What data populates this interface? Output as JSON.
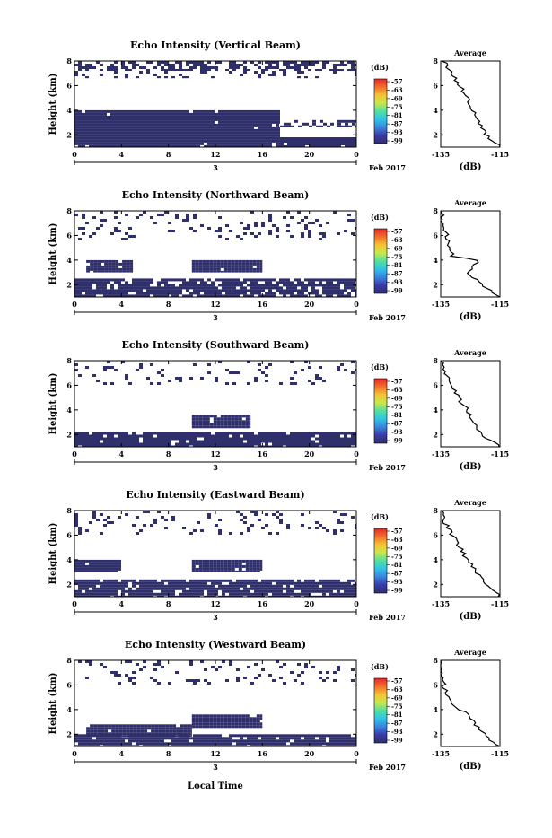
{
  "figure": {
    "xlabel_bottom": "Local Time",
    "date_label": "Feb 2017",
    "day_label": "3",
    "average_title": "Average",
    "average_xlabel": "(dB)",
    "ylabel": "Height (km)",
    "cb_unit": "(dB)",
    "cb_ticks": [
      "-57",
      "-63",
      "-69",
      "-75",
      "-81",
      "-87",
      "-93",
      "-99"
    ],
    "main_xticks": [
      "0",
      "4",
      "8",
      "12",
      "16",
      "20",
      "0"
    ],
    "main_yticks": [
      "8",
      "6",
      "4",
      "2"
    ],
    "avg_yticks": [
      "8",
      "6",
      "4",
      "2"
    ],
    "avg_xticks": [
      "-135",
      "-115"
    ]
  },
  "colors": {
    "field": "#2f2f6b",
    "colorbar": [
      "#e8262b",
      "#f26f2a",
      "#f5c431",
      "#c9e84a",
      "#52e0a0",
      "#2ec4e8",
      "#3a84e0",
      "#3a3aa8",
      "#2f2f6b"
    ]
  },
  "chart_data": [
    {
      "type": "heatmap",
      "title": "Echo Intensity (Vertical Beam)",
      "ylabel": "Height (km)",
      "xlim": [
        0,
        24
      ],
      "ylim": [
        1,
        8
      ],
      "echo_regions": [
        {
          "t": [
            0,
            24
          ],
          "h": [
            7.2,
            8.0
          ],
          "density": 0.55
        },
        {
          "t": [
            0,
            24
          ],
          "h": [
            6.6,
            7.2
          ],
          "density": 0.15
        },
        {
          "t": [
            0,
            17.5
          ],
          "h": [
            1.0,
            4.0
          ],
          "density": 0.97
        },
        {
          "t": [
            17.5,
            24
          ],
          "h": [
            1.0,
            1.8
          ],
          "density": 0.95
        },
        {
          "t": [
            17.5,
            24
          ],
          "h": [
            2.6,
            3.2
          ],
          "density": 0.4
        }
      ],
      "average": {
        "x": [
          -115,
          -117,
          -120,
          -122,
          -124,
          -126,
          -128,
          -130,
          -132,
          -134
        ],
        "y": [
          1,
          1.5,
          2,
          3,
          4,
          5,
          5.8,
          6.5,
          7.3,
          8
        ]
      }
    },
    {
      "type": "heatmap",
      "title": "Echo Intensity (Northward Beam)",
      "ylabel": "Height (km)",
      "xlim": [
        0,
        24
      ],
      "ylim": [
        1,
        8
      ],
      "echo_regions": [
        {
          "t": [
            0,
            24
          ],
          "h": [
            5.6,
            8.0
          ],
          "density": 0.12
        },
        {
          "t": [
            1,
            5
          ],
          "h": [
            3.0,
            4.0
          ],
          "density": 0.95
        },
        {
          "t": [
            10,
            16
          ],
          "h": [
            3.0,
            4.0
          ],
          "density": 0.97
        },
        {
          "t": [
            0,
            24
          ],
          "h": [
            1.0,
            2.5
          ],
          "density": 0.85
        }
      ],
      "average": {
        "x": [
          -115,
          -118,
          -122,
          -126,
          -122,
          -131,
          -132,
          -133,
          -134,
          -135
        ],
        "y": [
          1,
          1.5,
          2.2,
          3,
          4,
          4.3,
          5,
          6,
          7,
          8
        ]
      }
    },
    {
      "type": "heatmap",
      "title": "Echo Intensity (Southward Beam)",
      "ylabel": "Height (km)",
      "xlim": [
        0,
        24
      ],
      "ylim": [
        1,
        8
      ],
      "echo_regions": [
        {
          "t": [
            0,
            24
          ],
          "h": [
            6.0,
            8.0
          ],
          "density": 0.12
        },
        {
          "t": [
            10,
            15
          ],
          "h": [
            2.5,
            3.6
          ],
          "density": 0.95
        },
        {
          "t": [
            0,
            24
          ],
          "h": [
            1.0,
            2.2
          ],
          "density": 0.92
        }
      ],
      "average": {
        "x": [
          -115,
          -118,
          -121,
          -124,
          -126,
          -128,
          -130,
          -132,
          -134,
          -135
        ],
        "y": [
          1,
          1.5,
          2,
          3,
          4,
          4.6,
          5.5,
          6.3,
          7.2,
          8
        ]
      }
    },
    {
      "type": "heatmap",
      "title": "Echo Intensity (Eastward Beam)",
      "ylabel": "Height (km)",
      "xlim": [
        0,
        24
      ],
      "ylim": [
        1,
        8
      ],
      "echo_regions": [
        {
          "t": [
            0,
            24
          ],
          "h": [
            6.0,
            8.0
          ],
          "density": 0.12
        },
        {
          "t": [
            0,
            4
          ],
          "h": [
            3.0,
            4.0
          ],
          "density": 0.95
        },
        {
          "t": [
            10,
            16
          ],
          "h": [
            3.0,
            4.0
          ],
          "density": 0.97
        },
        {
          "t": [
            0,
            24
          ],
          "h": [
            1.0,
            2.4
          ],
          "density": 0.9
        }
      ],
      "average": {
        "x": [
          -115,
          -117,
          -120,
          -123,
          -126,
          -128,
          -130,
          -132,
          -134,
          -135
        ],
        "y": [
          1,
          1.5,
          2.2,
          3,
          4,
          4.8,
          5.6,
          6.4,
          7.2,
          8
        ]
      }
    },
    {
      "type": "heatmap",
      "title": "Echo Intensity (Westward Beam)",
      "ylabel": "Height (km)",
      "xlim": [
        0,
        24
      ],
      "ylim": [
        1,
        8
      ],
      "echo_regions": [
        {
          "t": [
            0,
            24
          ],
          "h": [
            6.0,
            8.0
          ],
          "density": 0.12
        },
        {
          "t": [
            10,
            16
          ],
          "h": [
            2.5,
            3.6
          ],
          "density": 0.95
        },
        {
          "t": [
            1,
            10
          ],
          "h": [
            1.8,
            2.8
          ],
          "density": 0.95
        },
        {
          "t": [
            0,
            24
          ],
          "h": [
            1.0,
            2.0
          ],
          "density": 0.92
        }
      ],
      "average": {
        "x": [
          -115,
          -118,
          -121,
          -124,
          -127,
          -131,
          -133,
          -134,
          -135,
          -135
        ],
        "y": [
          1,
          1.5,
          2.2,
          3,
          3.8,
          4.4,
          5.2,
          6,
          7,
          8
        ]
      }
    }
  ]
}
